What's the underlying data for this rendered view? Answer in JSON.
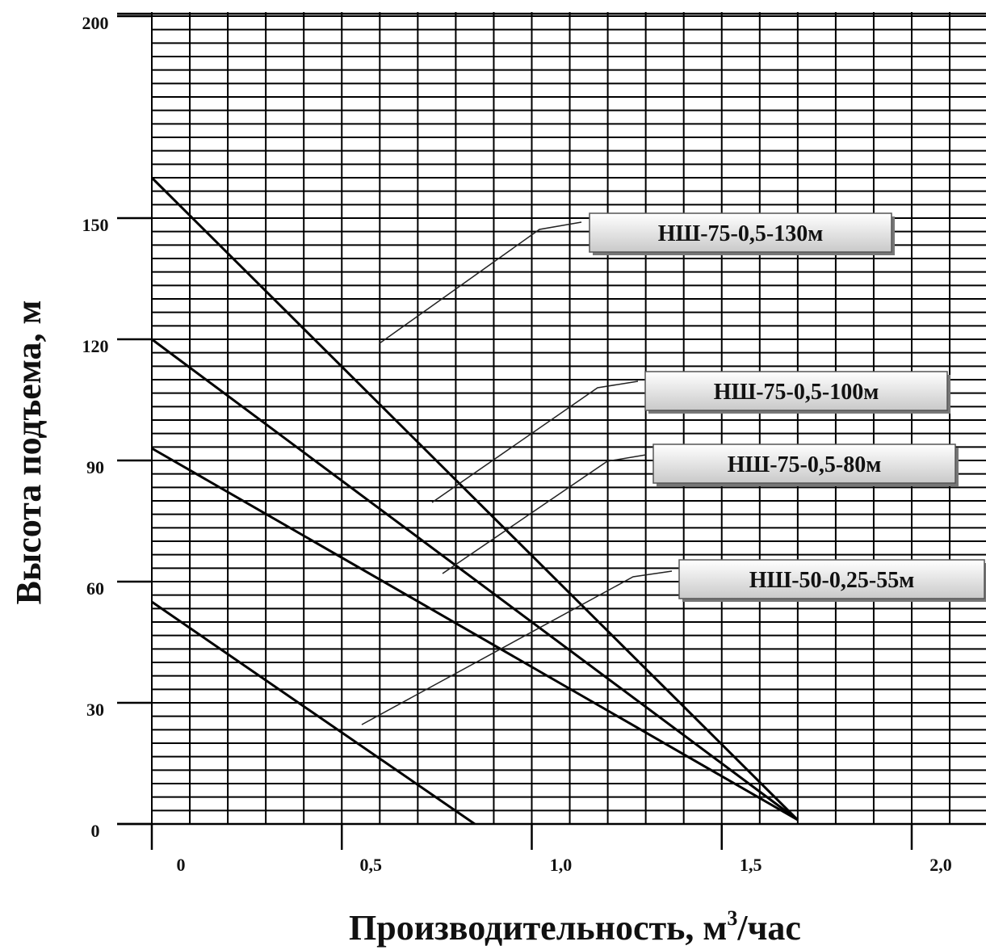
{
  "chart_data": {
    "type": "line",
    "xlabel_main": "Производительность, м",
    "xlabel_sup": "3",
    "xlabel_tail": "/час",
    "ylabel": "Высота подъема, м",
    "xlim": [
      0,
      2.0
    ],
    "ylim": [
      0,
      200
    ],
    "x_ticks": [
      {
        "value": 0,
        "label": "0"
      },
      {
        "value": 0.5,
        "label": "0,5"
      },
      {
        "value": 1.0,
        "label": "1,0"
      },
      {
        "value": 1.5,
        "label": "1,5"
      },
      {
        "value": 2.0,
        "label": "2,0"
      }
    ],
    "y_ticks": [
      {
        "value": 0,
        "label": "0"
      },
      {
        "value": 30,
        "label": "30"
      },
      {
        "value": 60,
        "label": "60"
      },
      {
        "value": 90,
        "label": "90"
      },
      {
        "value": 120,
        "label": "120"
      },
      {
        "value": 150,
        "label": "150"
      },
      {
        "value": 200,
        "label": "200"
      }
    ],
    "grid": true,
    "series": [
      {
        "name": "НШ-75-0,5-130м",
        "x": [
          0,
          1.7
        ],
        "y": [
          160,
          1
        ]
      },
      {
        "name": "НШ-75-0,5-100м",
        "x": [
          0,
          1.7
        ],
        "y": [
          120,
          1
        ]
      },
      {
        "name": "НШ-75-0,5-80м",
        "x": [
          0,
          1.7
        ],
        "y": [
          93,
          1
        ]
      },
      {
        "name": "НШ-50-0,25-55м",
        "x": [
          0,
          0.85
        ],
        "y": [
          55,
          0
        ]
      }
    ]
  }
}
